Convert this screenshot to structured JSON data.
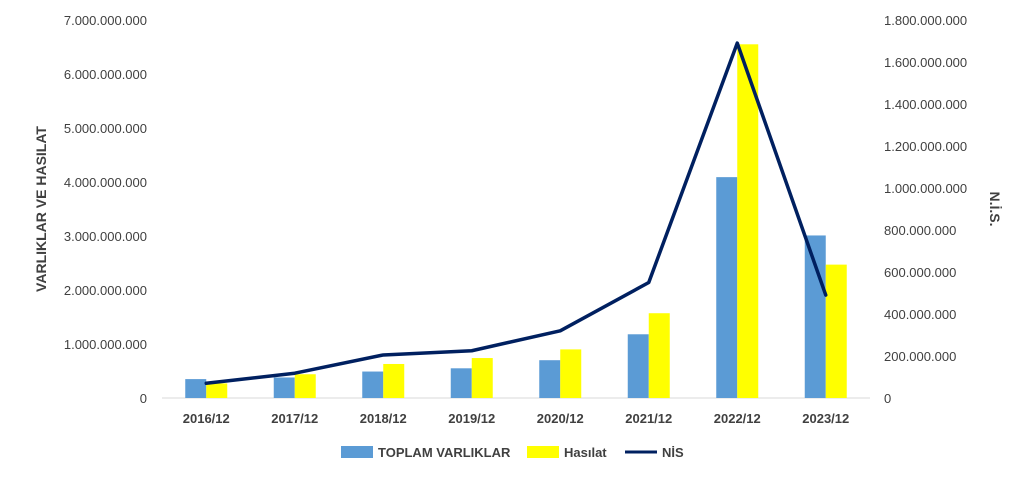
{
  "chart_data": {
    "type": "bar",
    "categories": [
      "2016/12",
      "2017/12",
      "2018/12",
      "2019/12",
      "2020/12",
      "2021/12",
      "2022/12",
      "2023/12"
    ],
    "series": [
      {
        "name": "TOPLAM VARLIKLAR",
        "type": "bar",
        "axis": "left",
        "color": "#5b9bd5",
        "values": [
          350000000,
          380000000,
          490000000,
          550000000,
          700000000,
          1180000000,
          4090000000,
          3010000000
        ]
      },
      {
        "name": "Hasılat",
        "type": "bar",
        "axis": "left",
        "color": "#ffff00",
        "values": [
          270000000,
          440000000,
          630000000,
          740000000,
          900000000,
          1570000000,
          6550000000,
          2470000000
        ]
      },
      {
        "name": "NİS",
        "type": "line",
        "axis": "right",
        "color": "#002060",
        "values": [
          70000000,
          118000000,
          205000000,
          225000000,
          320000000,
          550000000,
          1690000000,
          490000000
        ]
      }
    ],
    "ylabel": "VARLIKLAR VE HASILAT",
    "y2label": "N.İ.S.",
    "ylim": [
      0,
      7000000000
    ],
    "y2lim": [
      0,
      1800000000
    ],
    "yticks": [
      "0",
      "1.000.000.000",
      "2.000.000.000",
      "3.000.000.000",
      "4.000.000.000",
      "5.000.000.000",
      "6.000.000.000",
      "7.000.000.000"
    ],
    "y2ticks": [
      "0",
      "200.000.000",
      "400.000.000",
      "600.000.000",
      "800.000.000",
      "1.000.000.000",
      "1.200.000.000",
      "1.400.000.000",
      "1.600.000.000",
      "1.800.000.000"
    ],
    "grid": false,
    "legend": "bottom"
  }
}
